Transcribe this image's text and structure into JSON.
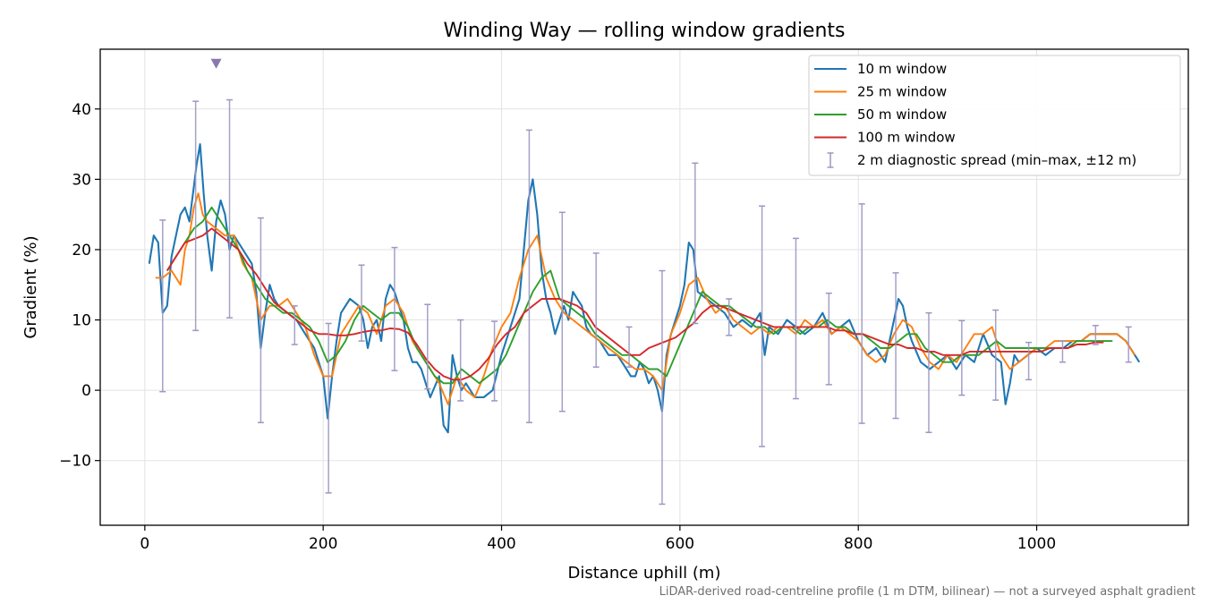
{
  "chart_data": {
    "type": "line",
    "title": "Winding Way — rolling window gradients",
    "xlabel": "Distance uphill (m)",
    "ylabel": "Gradient (%)",
    "xlim": [
      -50,
      1170
    ],
    "ylim": [
      -19.2,
      48.5
    ],
    "xticks": [
      0,
      200,
      400,
      600,
      800,
      1000
    ],
    "yticks": [
      -10,
      0,
      10,
      20,
      30,
      40
    ],
    "ytick_labels": [
      "−10",
      "0",
      "10",
      "20",
      "30",
      "40"
    ],
    "grid": true,
    "legend_position": "top-right",
    "footnote": "LiDAR-derived road-centreline profile (1 m DTM, bilinear) — not a surveyed asphalt gradient",
    "series": [
      {
        "name": "10 m window",
        "color": "#1f77b4",
        "x": [
          5,
          10,
          15,
          20,
          25,
          30,
          35,
          40,
          45,
          50,
          55,
          58,
          62,
          66,
          70,
          75,
          80,
          85,
          90,
          95,
          100,
          110,
          120,
          125,
          130,
          135,
          140,
          145,
          150,
          160,
          170,
          180,
          190,
          200,
          205,
          210,
          215,
          220,
          230,
          240,
          245,
          250,
          255,
          260,
          265,
          270,
          275,
          280,
          285,
          290,
          295,
          300,
          305,
          310,
          315,
          320,
          330,
          335,
          340,
          345,
          350,
          355,
          360,
          370,
          380,
          390,
          400,
          410,
          420,
          425,
          430,
          435,
          440,
          445,
          450,
          455,
          460,
          465,
          470,
          475,
          480,
          485,
          490,
          495,
          500,
          510,
          520,
          530,
          540,
          545,
          550,
          555,
          560,
          565,
          570,
          575,
          580,
          585,
          590,
          595,
          600,
          605,
          610,
          615,
          620,
          630,
          640,
          650,
          660,
          670,
          680,
          690,
          695,
          700,
          710,
          720,
          730,
          740,
          750,
          755,
          760,
          770,
          780,
          790,
          800,
          810,
          820,
          830,
          840,
          845,
          850,
          855,
          860,
          870,
          880,
          890,
          900,
          910,
          920,
          930,
          940,
          950,
          960,
          965,
          970,
          975,
          980,
          990,
          1000,
          1010,
          1020,
          1030,
          1040,
          1050,
          1060,
          1070,
          1080,
          1090,
          1100,
          1110,
          1115
        ],
        "y": [
          18,
          22,
          21,
          11,
          12,
          19,
          22,
          25,
          26,
          24,
          29,
          32,
          35,
          28,
          22,
          17,
          24,
          27,
          25,
          20,
          22,
          20,
          18,
          14,
          6,
          11,
          15,
          13,
          12,
          11,
          10,
          8,
          6,
          2,
          -4,
          2,
          7,
          11,
          13,
          12,
          10,
          6,
          9,
          10,
          7,
          13,
          15,
          14,
          12,
          10,
          6,
          4,
          4,
          3,
          1,
          -1,
          2,
          -5,
          -6,
          5,
          2,
          0,
          1,
          -1,
          -1,
          0,
          5,
          9,
          13,
          20,
          27,
          30,
          25,
          17,
          13,
          11,
          8,
          10,
          12,
          10,
          14,
          13,
          12,
          9,
          8,
          7,
          5,
          5,
          3,
          2,
          2,
          4,
          3,
          1,
          2,
          0,
          -3,
          5,
          8,
          10,
          12,
          15,
          21,
          20,
          14,
          13,
          12,
          11,
          9,
          10,
          9,
          11,
          5,
          9,
          8,
          10,
          9,
          8,
          9,
          10,
          11,
          8,
          9,
          10,
          7,
          5,
          6,
          4,
          10,
          13,
          12,
          9,
          7,
          4,
          3,
          4,
          5,
          3,
          5,
          4,
          8,
          5,
          4,
          -2,
          1,
          5,
          4,
          5,
          6,
          5,
          6,
          6,
          7,
          7,
          8,
          8,
          8,
          8,
          7,
          5,
          4
        ]
      },
      {
        "name": "25 m window",
        "color": "#ff7f0e",
        "x": [
          12,
          20,
          30,
          35,
          40,
          45,
          50,
          55,
          60,
          65,
          70,
          80,
          90,
          100,
          110,
          120,
          130,
          140,
          150,
          160,
          170,
          180,
          190,
          200,
          205,
          210,
          220,
          230,
          240,
          250,
          260,
          270,
          280,
          290,
          300,
          310,
          320,
          330,
          340,
          350,
          360,
          370,
          380,
          390,
          400,
          410,
          420,
          430,
          440,
          450,
          460,
          470,
          480,
          490,
          500,
          510,
          520,
          530,
          540,
          550,
          560,
          570,
          580,
          590,
          600,
          610,
          620,
          630,
          640,
          650,
          660,
          670,
          680,
          690,
          700,
          710,
          720,
          730,
          740,
          750,
          760,
          770,
          780,
          790,
          800,
          810,
          820,
          830,
          840,
          850,
          860,
          870,
          880,
          890,
          900,
          910,
          920,
          930,
          940,
          950,
          960,
          970,
          980,
          990,
          1000,
          1010,
          1020,
          1030,
          1040,
          1050,
          1060,
          1070,
          1080,
          1090,
          1100,
          1110
        ],
        "y": [
          16,
          16,
          17,
          16,
          15,
          20,
          22,
          26,
          28,
          25,
          24,
          23,
          22,
          22,
          18,
          16,
          10,
          12,
          12,
          13,
          11,
          9,
          5,
          2,
          2,
          2,
          8,
          10,
          12,
          11,
          8,
          12,
          13,
          11,
          7,
          5,
          3,
          1,
          -2,
          2,
          0,
          -1,
          2,
          6,
          9,
          11,
          16,
          20,
          22,
          16,
          13,
          11,
          10,
          9,
          8,
          7,
          6,
          5,
          4,
          3,
          3,
          2,
          0,
          8,
          11,
          15,
          16,
          13,
          11,
          12,
          10,
          9,
          8,
          9,
          8,
          9,
          9,
          8,
          10,
          9,
          10,
          8,
          9,
          8,
          7,
          5,
          4,
          5,
          8,
          10,
          9,
          6,
          4,
          3,
          5,
          4,
          6,
          8,
          8,
          9,
          5,
          3,
          4,
          5,
          6,
          6,
          7,
          7,
          7,
          7,
          8,
          8,
          8,
          8,
          7,
          5
        ]
      },
      {
        "name": "50 m window",
        "color": "#2ca02c",
        "x": [
          25,
          35,
          45,
          55,
          65,
          75,
          85,
          95,
          105,
          115,
          125,
          135,
          145,
          155,
          165,
          175,
          185,
          195,
          205,
          215,
          225,
          235,
          245,
          255,
          265,
          275,
          285,
          295,
          305,
          315,
          325,
          335,
          345,
          355,
          365,
          375,
          385,
          395,
          405,
          415,
          425,
          435,
          445,
          455,
          465,
          475,
          485,
          495,
          505,
          515,
          525,
          535,
          545,
          555,
          565,
          575,
          585,
          595,
          605,
          615,
          625,
          635,
          645,
          655,
          665,
          675,
          685,
          695,
          705,
          715,
          725,
          735,
          745,
          755,
          765,
          775,
          785,
          795,
          805,
          815,
          825,
          835,
          845,
          855,
          865,
          875,
          885,
          895,
          905,
          915,
          925,
          935,
          945,
          955,
          965,
          975,
          985,
          995,
          1005,
          1015,
          1025,
          1035,
          1045,
          1055,
          1065,
          1075,
          1085
        ],
        "y": [
          17,
          19,
          21,
          23,
          24,
          26,
          24,
          22,
          20,
          17,
          15,
          13,
          12,
          11,
          11,
          10,
          9,
          7,
          4,
          5,
          7,
          10,
          12,
          11,
          10,
          11,
          11,
          9,
          6,
          4,
          2,
          1,
          1,
          3,
          2,
          1,
          2,
          3,
          5,
          8,
          11,
          14,
          16,
          17,
          13,
          12,
          11,
          10,
          8,
          7,
          6,
          5,
          5,
          4,
          3,
          3,
          2,
          5,
          8,
          11,
          14,
          13,
          12,
          12,
          11,
          10,
          9,
          9,
          8,
          9,
          9,
          8,
          9,
          9,
          10,
          9,
          9,
          8,
          8,
          7,
          6,
          6,
          7,
          8,
          8,
          6,
          5,
          4,
          4,
          5,
          5,
          5,
          6,
          7,
          6,
          6,
          6,
          6,
          6,
          6,
          6,
          6,
          7,
          7,
          7,
          7,
          7
        ]
      },
      {
        "name": "100 m window",
        "color": "#d62728",
        "x": [
          25,
          35,
          45,
          55,
          65,
          75,
          85,
          95,
          105,
          115,
          125,
          135,
          145,
          155,
          165,
          175,
          185,
          195,
          205,
          215,
          225,
          235,
          245,
          255,
          265,
          275,
          285,
          295,
          305,
          315,
          325,
          335,
          345,
          355,
          365,
          375,
          385,
          395,
          405,
          415,
          425,
          435,
          445,
          455,
          465,
          475,
          485,
          495,
          505,
          515,
          525,
          535,
          545,
          555,
          565,
          575,
          585,
          595,
          605,
          615,
          625,
          635,
          645,
          655,
          665,
          675,
          685,
          695,
          705,
          715,
          725,
          735,
          745,
          755,
          765,
          775,
          785,
          795,
          805,
          815,
          825,
          835,
          845,
          855,
          865,
          875,
          885,
          895,
          905,
          915,
          925,
          935,
          945,
          955,
          965,
          975,
          985,
          995,
          1005,
          1015,
          1025,
          1035,
          1045,
          1055,
          1065,
          1075
        ],
        "y": [
          17,
          19,
          21,
          21.5,
          22,
          23,
          22,
          21,
          20,
          18,
          16.5,
          14.5,
          12.5,
          11.5,
          10.5,
          9.5,
          8.5,
          8,
          8,
          7.8,
          7.8,
          8,
          8.3,
          8.5,
          8.5,
          8.8,
          8.7,
          8.2,
          6.5,
          4.5,
          3,
          2,
          1.5,
          1.5,
          2,
          3,
          4.5,
          6.5,
          8,
          9,
          11,
          12,
          13,
          13,
          13,
          12.5,
          12,
          11,
          9,
          8,
          7,
          6,
          5,
          5,
          6,
          6.5,
          7,
          7.5,
          8.5,
          9.5,
          11,
          12,
          12,
          11.5,
          11,
          10.5,
          10,
          9.5,
          9,
          9,
          9,
          9,
          9,
          9,
          9,
          8.5,
          8.5,
          8,
          8,
          7.5,
          7,
          6.5,
          6.5,
          6,
          6,
          5.5,
          5.5,
          5,
          5,
          5,
          5.5,
          5.5,
          5.5,
          5.5,
          5.5,
          5.5,
          5.5,
          5.5,
          5.5,
          6,
          6,
          6,
          6.5,
          6.5,
          6.8,
          6.8
        ]
      },
      {
        "name": "2 m diagnostic spread (min–max, ±12 m)",
        "color": "#9b97c4",
        "type": "errorbar",
        "x": [
          20,
          57,
          95,
          130,
          168,
          206,
          243,
          280,
          317,
          354,
          392,
          431,
          468,
          506,
          543,
          580,
          617,
          655,
          692,
          730,
          767,
          804,
          842,
          879,
          916,
          954,
          991,
          1029,
          1066,
          1103
        ],
        "min": [
          -0.2,
          8.5,
          10.3,
          -4.6,
          6.5,
          -14.6,
          7.0,
          2.8,
          0.2,
          -1.5,
          -1.5,
          -4.6,
          -3.0,
          3.3,
          3.3,
          -16.2,
          9.5,
          7.8,
          -8.0,
          -1.2,
          0.8,
          -4.7,
          -4.0,
          -6.0,
          -0.7,
          -1.4,
          1.5,
          4.0,
          6.5,
          4.0
        ],
        "max": [
          24.2,
          41.1,
          41.3,
          24.5,
          12.0,
          9.5,
          17.8,
          20.3,
          12.2,
          10.0,
          9.8,
          37.0,
          25.3,
          19.5,
          9.0,
          17.0,
          32.3,
          13.0,
          26.2,
          21.6,
          13.8,
          26.5,
          16.7,
          11.0,
          9.9,
          11.4,
          6.8,
          7.0,
          9.2,
          9.0
        ]
      }
    ],
    "annotations": [
      {
        "type": "marker",
        "shape": "down-triangle",
        "x": 80,
        "y": 46.5,
        "color": "#8a77ab"
      }
    ]
  }
}
